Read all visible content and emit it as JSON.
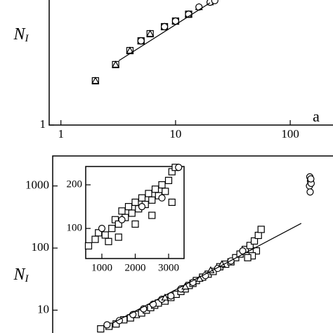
{
  "chart_data": [
    {
      "type": "scatter",
      "xlog": true,
      "ylog": true,
      "xlim": [
        0.79,
        257
      ],
      "ylim": [
        1,
        111
      ],
      "xticks": [
        1,
        10,
        100
      ],
      "yticks": [
        1
      ],
      "ylabel": {
        "main": "N",
        "sub": "I"
      },
      "annotation": "a",
      "series": [
        {
          "marker": "square",
          "color": "#000000",
          "x": [
            2,
            3,
            4,
            5,
            6,
            8,
            10,
            13
          ],
          "values": [
            5.2,
            9.5,
            16,
            23,
            30,
            39,
            48,
            62
          ]
        },
        {
          "marker": "triangle",
          "color": "#000000",
          "x": [
            2,
            3,
            4,
            5,
            6,
            8,
            10,
            13,
            16,
            20
          ],
          "values": [
            5.2,
            9.5,
            16,
            23,
            30,
            39,
            48,
            62,
            81,
            97
          ]
        },
        {
          "marker": "circle",
          "color": "#000000",
          "x": [
            5,
            8,
            10,
            13,
            16,
            20,
            22
          ],
          "values": [
            23,
            39,
            48,
            62,
            81,
            97,
            103
          ]
        },
        {
          "marker": "line",
          "color": "#000000",
          "x": [
            3.2,
            20
          ],
          "values": [
            11,
            95
          ]
        }
      ]
    },
    {
      "type": "scatter",
      "xlog": true,
      "ylog": true,
      "xlim": [
        0.84,
        253
      ],
      "ylim": [
        4.07,
        3040
      ],
      "yticks": [
        10,
        100,
        1000
      ],
      "ylabel": {
        "main": "N",
        "sub": "I"
      },
      "series": [
        {
          "marker": "square",
          "color": "#000000",
          "x": [
            2.2,
            2.6,
            3,
            3.5,
            4,
            4.5,
            5,
            5.5,
            6,
            6.5,
            7,
            8,
            9,
            10,
            11,
            12,
            13,
            14,
            15,
            17,
            19,
            21,
            24,
            27,
            30,
            33,
            36,
            40,
            44,
            48,
            52,
            55,
            50,
            46,
            42
          ],
          "values": [
            5,
            5.5,
            6,
            7,
            7.5,
            8.5,
            9,
            10,
            11,
            12,
            13,
            14,
            16,
            18,
            20,
            22,
            25,
            27,
            30,
            34,
            38,
            42,
            50,
            55,
            60,
            70,
            80,
            95,
            110,
            130,
            160,
            200,
            90,
            75,
            70
          ]
        },
        {
          "marker": "circle",
          "color": "#000000",
          "x": [
            2.5,
            3.2,
            4.2,
            5.2,
            6.3,
            7.5,
            9,
            11,
            14,
            18,
            23,
            30,
            38,
            145,
            148,
            146,
            150,
            147,
            149
          ],
          "values": [
            5.8,
            6.8,
            8.5,
            10.5,
            12.5,
            15,
            17,
            22,
            28,
            36,
            47,
            62,
            90,
            1000,
            1200,
            1400,
            1100,
            800,
            1300
          ]
        },
        {
          "marker": "triangle",
          "color": "#000000",
          "x": [
            8,
            12,
            16,
            20,
            25
          ],
          "values": [
            16,
            24,
            32,
            44,
            55
          ]
        },
        {
          "marker": "line",
          "color": "#000000",
          "x": [
            2.8,
            123
          ],
          "values": [
            6.2,
            250
          ]
        }
      ]
    },
    {
      "type": "scatter",
      "xlog": false,
      "ylog": false,
      "xlim": [
        516,
        3463
      ],
      "ylim": [
        31,
        242
      ],
      "xticks": [
        1000,
        2000,
        3000
      ],
      "yticks": [
        100,
        200
      ],
      "series": [
        {
          "marker": "square",
          "color": "#000000",
          "x": [
            600,
            800,
            900,
            1100,
            1300,
            1400,
            1500,
            1600,
            1700,
            1800,
            1900,
            2000,
            2100,
            2200,
            2300,
            2400,
            2500,
            2600,
            2700,
            2800,
            2900,
            3000,
            3100,
            3200,
            1200,
            2000,
            2500,
            3100,
            1500
          ],
          "values": [
            60,
            75,
            90,
            85,
            100,
            120,
            110,
            140,
            125,
            150,
            135,
            160,
            145,
            170,
            155,
            180,
            165,
            190,
            175,
            200,
            185,
            210,
            230,
            240,
            70,
            110,
            130,
            160,
            80
          ]
        },
        {
          "marker": "circle",
          "color": "#000000",
          "x": [
            1000,
            1600,
            2200,
            2800,
            3300
          ],
          "values": [
            100,
            120,
            150,
            170,
            240
          ]
        }
      ]
    }
  ]
}
